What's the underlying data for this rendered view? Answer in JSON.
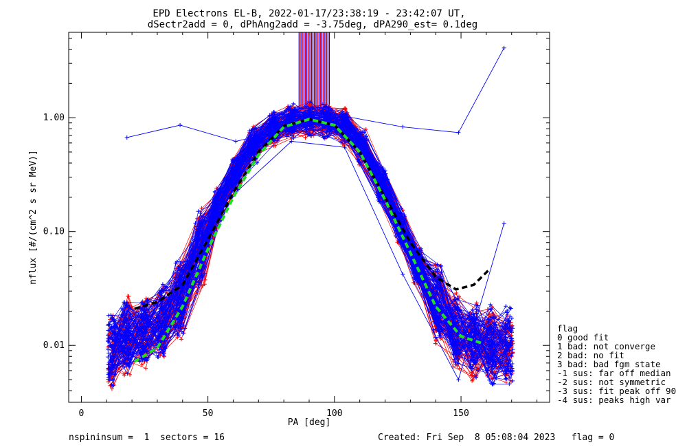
{
  "chart_data": {
    "type": "line",
    "title_lines": [
      "EPD Electrons EL-B, 2022-01-17/23:38:19 - 23:42:07 UT,",
      "dSectr2add = 0, dPhAng2add = -3.75deg, dPA290_est=   0.1deg"
    ],
    "xlabel": "PA [deg]",
    "ylabel": "nflux [#/(cm^2 s sr MeV)]",
    "xlim": [
      -5,
      185
    ],
    "ylim_log10": [
      -2.5,
      0.75
    ],
    "x_ticks": [
      {
        "v": 0,
        "label": "0"
      },
      {
        "v": 50,
        "label": "50"
      },
      {
        "v": 100,
        "label": "100"
      },
      {
        "v": 150,
        "label": "150"
      }
    ],
    "y_ticks": [
      {
        "v": 0.01,
        "label": "0.01"
      },
      {
        "v": 0.1,
        "label": "0.10"
      },
      {
        "v": 1.0,
        "label": "1.00"
      }
    ],
    "grid": false,
    "curves": {
      "blue_outlier": {
        "color": "#0000ff",
        "x": [
          18,
          39,
          61,
          83,
          104,
          127,
          149,
          167
        ],
        "y": [
          0.67,
          0.86,
          0.62,
          0.8,
          1.03,
          0.83,
          0.74,
          4.1
        ]
      },
      "blue_outlier_2": {
        "color": "#0000ff",
        "x": [
          18,
          39,
          61,
          83,
          104,
          127,
          149,
          167
        ],
        "y": [
          0.012,
          0.035,
          0.22,
          0.62,
          0.55,
          0.042,
          0.005,
          0.118
        ]
      },
      "black_dashed_fit": {
        "color": "#000000",
        "x": [
          21,
          30,
          40,
          50,
          60,
          70,
          80,
          90,
          100,
          110,
          120,
          130,
          140,
          148,
          155,
          161
        ],
        "y": [
          0.021,
          0.024,
          0.034,
          0.085,
          0.22,
          0.5,
          0.85,
          0.97,
          0.86,
          0.5,
          0.2,
          0.08,
          0.04,
          0.031,
          0.034,
          0.046
        ]
      },
      "green_dashed_median": {
        "color": "#22dd22",
        "x": [
          21,
          30,
          40,
          50,
          60,
          70,
          80,
          90,
          100,
          110,
          120,
          130,
          140,
          150,
          158
        ],
        "y": [
          0.0072,
          0.0095,
          0.022,
          0.07,
          0.2,
          0.47,
          0.83,
          0.97,
          0.86,
          0.5,
          0.19,
          0.065,
          0.022,
          0.012,
          0.0105
        ]
      }
    },
    "base_profile": {
      "x": [
        12,
        18,
        25,
        32,
        39,
        47,
        54,
        61,
        68,
        76,
        83,
        90,
        97,
        104,
        111,
        119,
        126,
        133,
        141,
        148,
        155,
        162,
        169
      ],
      "y": [
        0.009,
        0.012,
        0.013,
        0.016,
        0.026,
        0.07,
        0.17,
        0.33,
        0.58,
        0.82,
        0.94,
        0.96,
        0.93,
        0.85,
        0.55,
        0.25,
        0.11,
        0.05,
        0.024,
        0.014,
        0.011,
        0.01,
        0.01
      ]
    },
    "bundles": [
      {
        "color": "#ff0000",
        "count": 70,
        "seed": 7
      },
      {
        "color": "#0000ff",
        "count": 90,
        "seed": 19
      }
    ],
    "spike_region": {
      "x_range": [
        86,
        98
      ],
      "color_a": "#0000ff",
      "color_b": "#ff0000"
    },
    "legend": {
      "placement": "right",
      "title": "flag",
      "items": [
        "0 good fit",
        "1 bad: not converge",
        "2 bad: no fit",
        "3 bad: bad fgm state",
        "-1 sus: far off median",
        "-2 sus: not symmetric",
        "-3 sus: fit peak off 90",
        "-4 sus: peaks high var"
      ]
    }
  },
  "footer": {
    "left": "nspininsum =  1  sectors = 16",
    "right": "Created: Fri Sep  8 05:08:04 2023   flag = 0"
  }
}
